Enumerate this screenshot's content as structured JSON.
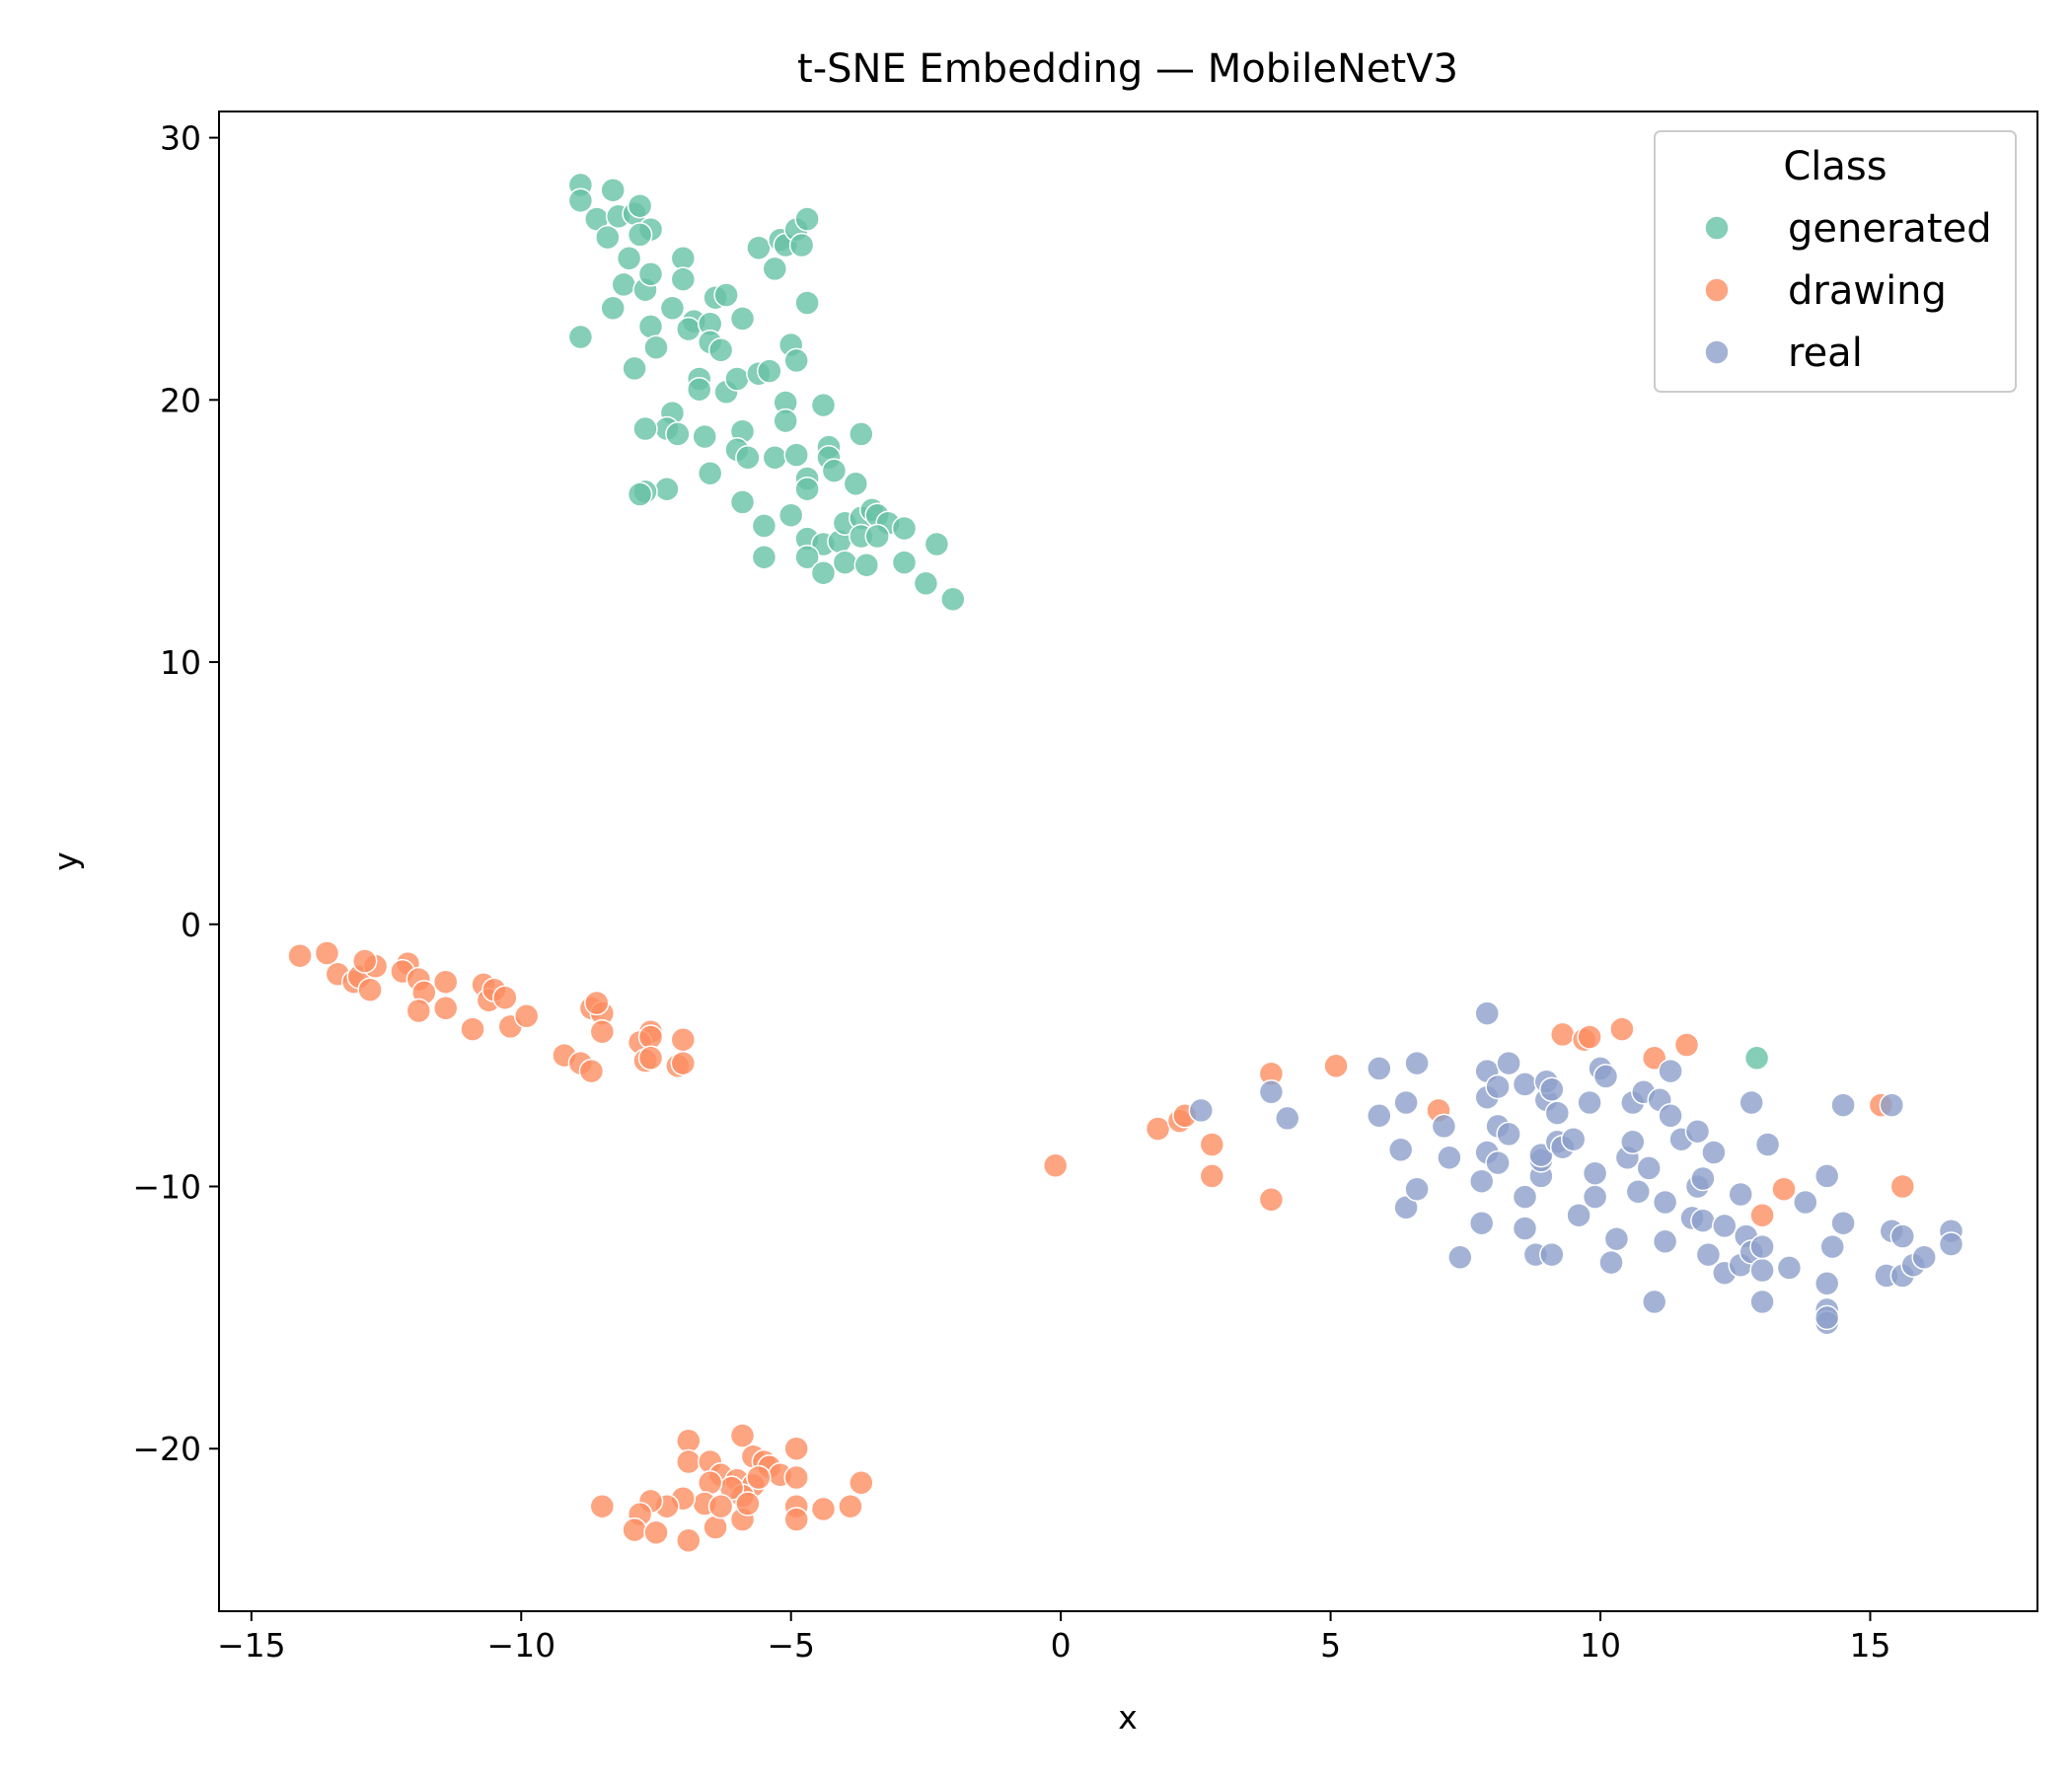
{
  "chart_data": {
    "type": "scatter",
    "title": "t-SNE Embedding — MobileNetV3",
    "xlabel": "x",
    "ylabel": "y",
    "xlim": [
      -15.6,
      18.1
    ],
    "ylim": [
      -26.2,
      31.0
    ],
    "xticks": [
      -15,
      -10,
      -5,
      0,
      5,
      10,
      15
    ],
    "yticks": [
      -20,
      -10,
      0,
      10,
      20,
      30
    ],
    "xtick_labels": [
      "−15",
      "−10",
      "−5",
      "0",
      "5",
      "10",
      "15"
    ],
    "ytick_labels": [
      "−20",
      "−10",
      "0",
      "10",
      "20",
      "30"
    ],
    "grid": false,
    "legend": {
      "title": "Class",
      "position": "top-right"
    },
    "series": [
      {
        "name": "generated",
        "color": "#66c2a5",
        "points": [
          [
            -8.9,
            28.2
          ],
          [
            -8.9,
            27.6
          ],
          [
            -8.6,
            26.9
          ],
          [
            -8.4,
            26.2
          ],
          [
            -8.3,
            28.0
          ],
          [
            -8.2,
            27.0
          ],
          [
            -7.9,
            27.1
          ],
          [
            -7.8,
            27.4
          ],
          [
            -7.6,
            26.5
          ],
          [
            -7.8,
            26.3
          ],
          [
            -8.0,
            25.4
          ],
          [
            -8.1,
            24.4
          ],
          [
            -8.3,
            23.5
          ],
          [
            -7.7,
            24.2
          ],
          [
            -7.6,
            24.8
          ],
          [
            -7.0,
            25.4
          ],
          [
            -7.0,
            24.6
          ],
          [
            -7.2,
            23.5
          ],
          [
            -6.8,
            23.0
          ],
          [
            -6.9,
            22.7
          ],
          [
            -6.5,
            22.9
          ],
          [
            -6.4,
            23.9
          ],
          [
            -6.2,
            24.0
          ],
          [
            -7.6,
            22.8
          ],
          [
            -7.5,
            22.0
          ],
          [
            -7.9,
            21.2
          ],
          [
            -8.9,
            22.4
          ],
          [
            -6.5,
            22.2
          ],
          [
            -6.3,
            21.9
          ],
          [
            -6.7,
            20.8
          ],
          [
            -6.7,
            20.4
          ],
          [
            -6.2,
            20.3
          ],
          [
            -6.0,
            20.8
          ],
          [
            -5.9,
            23.1
          ],
          [
            -5.6,
            21.0
          ],
          [
            -5.4,
            21.1
          ],
          [
            -5.6,
            25.8
          ],
          [
            -5.3,
            25.0
          ],
          [
            -5.2,
            26.1
          ],
          [
            -5.1,
            25.9
          ],
          [
            -4.9,
            26.5
          ],
          [
            -4.7,
            26.9
          ],
          [
            -4.8,
            25.9
          ],
          [
            -4.7,
            23.7
          ],
          [
            -5.0,
            22.1
          ],
          [
            -4.9,
            21.5
          ],
          [
            -5.1,
            19.9
          ],
          [
            -5.1,
            19.2
          ],
          [
            -4.4,
            19.8
          ],
          [
            -7.2,
            19.5
          ],
          [
            -7.3,
            18.9
          ],
          [
            -7.1,
            18.7
          ],
          [
            -7.7,
            18.9
          ],
          [
            -6.6,
            18.6
          ],
          [
            -5.9,
            18.8
          ],
          [
            -6.0,
            18.1
          ],
          [
            -5.8,
            17.8
          ],
          [
            -5.3,
            17.8
          ],
          [
            -4.9,
            17.9
          ],
          [
            -4.7,
            17.0
          ],
          [
            -4.7,
            16.6
          ],
          [
            -4.3,
            18.2
          ],
          [
            -4.3,
            17.8
          ],
          [
            -4.2,
            17.3
          ],
          [
            -3.7,
            18.7
          ],
          [
            -3.8,
            16.8
          ],
          [
            -6.5,
            17.2
          ],
          [
            -7.3,
            16.6
          ],
          [
            -7.7,
            16.5
          ],
          [
            -7.8,
            16.4
          ],
          [
            -5.9,
            16.1
          ],
          [
            -5.0,
            15.6
          ],
          [
            -5.5,
            15.2
          ],
          [
            -4.7,
            14.7
          ],
          [
            -4.4,
            14.5
          ],
          [
            -4.1,
            14.6
          ],
          [
            -4.0,
            15.3
          ],
          [
            -3.7,
            15.5
          ],
          [
            -3.5,
            15.8
          ],
          [
            -3.4,
            15.6
          ],
          [
            -3.2,
            15.3
          ],
          [
            -2.9,
            15.1
          ],
          [
            -3.7,
            14.8
          ],
          [
            -3.4,
            14.8
          ],
          [
            -4.7,
            14.0
          ],
          [
            -4.4,
            13.4
          ],
          [
            -4.0,
            13.8
          ],
          [
            -3.6,
            13.7
          ],
          [
            -2.9,
            13.8
          ],
          [
            -2.3,
            14.5
          ],
          [
            -2.5,
            13.0
          ],
          [
            -2.0,
            12.4
          ],
          [
            -5.5,
            14.0
          ]
        ]
      },
      {
        "name": "drawing",
        "color": "#fc8d62",
        "points": [
          [
            -14.1,
            -1.2
          ],
          [
            -13.6,
            -1.1
          ],
          [
            -13.4,
            -1.9
          ],
          [
            -13.1,
            -2.2
          ],
          [
            -13.0,
            -2.0
          ],
          [
            -12.8,
            -2.5
          ],
          [
            -12.7,
            -1.6
          ],
          [
            -12.9,
            -1.4
          ],
          [
            -12.1,
            -1.5
          ],
          [
            -12.2,
            -1.8
          ],
          [
            -11.9,
            -2.1
          ],
          [
            -11.8,
            -2.6
          ],
          [
            -11.9,
            -3.3
          ],
          [
            -11.4,
            -2.2
          ],
          [
            -11.4,
            -3.2
          ],
          [
            -10.9,
            -4.0
          ],
          [
            -10.7,
            -2.3
          ],
          [
            -10.6,
            -2.9
          ],
          [
            -10.5,
            -2.5
          ],
          [
            -10.3,
            -2.8
          ],
          [
            -10.2,
            -3.9
          ],
          [
            -9.9,
            -3.5
          ],
          [
            -9.2,
            -5.0
          ],
          [
            -8.9,
            -5.3
          ],
          [
            -8.7,
            -5.6
          ],
          [
            -8.7,
            -3.2
          ],
          [
            -8.5,
            -3.4
          ],
          [
            -8.5,
            -4.1
          ],
          [
            -8.6,
            -3.0
          ],
          [
            -7.6,
            -4.1
          ],
          [
            -7.8,
            -4.5
          ],
          [
            -7.6,
            -4.3
          ],
          [
            -7.7,
            -5.2
          ],
          [
            -7.6,
            -5.1
          ],
          [
            -7.1,
            -5.4
          ],
          [
            -7.0,
            -5.3
          ],
          [
            -7.0,
            -4.4
          ],
          [
            -6.9,
            -19.7
          ],
          [
            -6.9,
            -20.5
          ],
          [
            -6.5,
            -20.5
          ],
          [
            -6.3,
            -21.0
          ],
          [
            -6.0,
            -21.2
          ],
          [
            -5.9,
            -19.5
          ],
          [
            -5.7,
            -20.3
          ],
          [
            -5.5,
            -20.5
          ],
          [
            -5.4,
            -20.7
          ],
          [
            -5.2,
            -21.0
          ],
          [
            -4.9,
            -20.0
          ],
          [
            -4.9,
            -21.1
          ],
          [
            -5.7,
            -21.4
          ],
          [
            -5.9,
            -21.8
          ],
          [
            -6.1,
            -21.5
          ],
          [
            -6.5,
            -21.3
          ],
          [
            -6.6,
            -22.1
          ],
          [
            -7.0,
            -21.9
          ],
          [
            -7.3,
            -22.2
          ],
          [
            -7.6,
            -22.0
          ],
          [
            -7.8,
            -22.5
          ],
          [
            -7.9,
            -23.1
          ],
          [
            -7.5,
            -23.2
          ],
          [
            -6.9,
            -23.5
          ],
          [
            -6.4,
            -23.0
          ],
          [
            -6.3,
            -22.2
          ],
          [
            -5.9,
            -22.7
          ],
          [
            -5.8,
            -22.1
          ],
          [
            -4.9,
            -22.2
          ],
          [
            -4.9,
            -22.7
          ],
          [
            -4.4,
            -22.3
          ],
          [
            -3.9,
            -22.2
          ],
          [
            -3.7,
            -21.3
          ],
          [
            -8.5,
            -22.2
          ],
          [
            -5.6,
            -21.1
          ],
          [
            -0.1,
            -9.2
          ],
          [
            1.8,
            -7.8
          ],
          [
            2.2,
            -7.5
          ],
          [
            2.3,
            -7.3
          ],
          [
            2.8,
            -8.4
          ],
          [
            2.8,
            -9.6
          ],
          [
            3.9,
            -10.5
          ],
          [
            3.9,
            -5.7
          ],
          [
            5.1,
            -5.4
          ],
          [
            7.0,
            -7.1
          ],
          [
            9.3,
            -4.2
          ],
          [
            9.7,
            -4.4
          ],
          [
            9.8,
            -4.3
          ],
          [
            10.4,
            -4.0
          ],
          [
            11.0,
            -5.1
          ],
          [
            11.6,
            -4.6
          ],
          [
            13.0,
            -11.1
          ],
          [
            13.4,
            -10.1
          ],
          [
            15.2,
            -6.9
          ],
          [
            15.6,
            -10.0
          ]
        ]
      },
      {
        "name": "real",
        "color": "#8da0cb",
        "points": [
          [
            7.9,
            -3.4
          ],
          [
            2.6,
            -7.1
          ],
          [
            3.9,
            -6.4
          ],
          [
            4.2,
            -7.4
          ],
          [
            5.9,
            -5.5
          ],
          [
            5.9,
            -7.3
          ],
          [
            6.3,
            -8.6
          ],
          [
            6.4,
            -6.8
          ],
          [
            6.4,
            -10.8
          ],
          [
            6.6,
            -5.3
          ],
          [
            6.6,
            -10.1
          ],
          [
            7.1,
            -7.7
          ],
          [
            7.2,
            -8.9
          ],
          [
            7.4,
            -12.7
          ],
          [
            7.8,
            -9.8
          ],
          [
            7.8,
            -11.4
          ],
          [
            7.9,
            -5.6
          ],
          [
            7.9,
            -6.6
          ],
          [
            7.9,
            -8.7
          ],
          [
            8.1,
            -6.2
          ],
          [
            8.1,
            -7.7
          ],
          [
            8.1,
            -9.1
          ],
          [
            8.3,
            -5.3
          ],
          [
            8.3,
            -8.0
          ],
          [
            8.6,
            -6.1
          ],
          [
            8.6,
            -10.4
          ],
          [
            8.6,
            -11.6
          ],
          [
            8.8,
            -12.6
          ],
          [
            8.9,
            -9.6
          ],
          [
            8.9,
            -9.0
          ],
          [
            8.9,
            -8.8
          ],
          [
            9.0,
            -6.7
          ],
          [
            9.0,
            -6.0
          ],
          [
            9.1,
            -12.6
          ],
          [
            9.1,
            -6.3
          ],
          [
            9.2,
            -8.3
          ],
          [
            9.2,
            -7.2
          ],
          [
            9.3,
            -8.5
          ],
          [
            9.5,
            -8.2
          ],
          [
            9.6,
            -11.1
          ],
          [
            9.8,
            -6.8
          ],
          [
            9.9,
            -9.5
          ],
          [
            9.9,
            -10.4
          ],
          [
            10.0,
            -5.5
          ],
          [
            10.1,
            -5.8
          ],
          [
            10.2,
            -12.9
          ],
          [
            10.3,
            -12.0
          ],
          [
            10.5,
            -8.9
          ],
          [
            10.6,
            -8.3
          ],
          [
            10.6,
            -6.8
          ],
          [
            10.7,
            -10.2
          ],
          [
            10.8,
            -6.4
          ],
          [
            10.9,
            -9.3
          ],
          [
            11.0,
            -14.4
          ],
          [
            11.1,
            -6.7
          ],
          [
            11.2,
            -10.6
          ],
          [
            11.2,
            -12.1
          ],
          [
            11.3,
            -7.3
          ],
          [
            11.3,
            -5.6
          ],
          [
            11.5,
            -8.2
          ],
          [
            11.7,
            -11.2
          ],
          [
            11.8,
            -10.0
          ],
          [
            11.8,
            -7.9
          ],
          [
            11.9,
            -9.7
          ],
          [
            11.9,
            -11.3
          ],
          [
            12.0,
            -12.6
          ],
          [
            12.1,
            -8.7
          ],
          [
            12.3,
            -13.3
          ],
          [
            12.3,
            -11.5
          ],
          [
            12.6,
            -10.3
          ],
          [
            12.6,
            -13.0
          ],
          [
            12.7,
            -11.9
          ],
          [
            12.8,
            -12.5
          ],
          [
            12.8,
            -6.8
          ],
          [
            13.0,
            -14.4
          ],
          [
            13.0,
            -13.2
          ],
          [
            13.0,
            -12.3
          ],
          [
            13.1,
            -8.4
          ],
          [
            13.5,
            -13.1
          ],
          [
            13.8,
            -10.6
          ],
          [
            14.2,
            -9.6
          ],
          [
            14.2,
            -13.7
          ],
          [
            14.3,
            -12.3
          ],
          [
            14.2,
            -14.7
          ],
          [
            14.2,
            -15.2
          ],
          [
            14.2,
            -15.0
          ],
          [
            14.5,
            -11.4
          ],
          [
            14.5,
            -6.9
          ],
          [
            15.3,
            -13.4
          ],
          [
            15.4,
            -11.7
          ],
          [
            15.4,
            -6.9
          ],
          [
            15.6,
            -13.4
          ],
          [
            15.6,
            -11.9
          ],
          [
            15.8,
            -13.0
          ],
          [
            16.0,
            -12.7
          ],
          [
            16.5,
            -11.7
          ],
          [
            16.5,
            -12.2
          ]
        ]
      },
      {
        "name": "",
        "color": "#66c2a5",
        "points": [
          [
            12.9,
            -5.1
          ]
        ]
      }
    ]
  }
}
